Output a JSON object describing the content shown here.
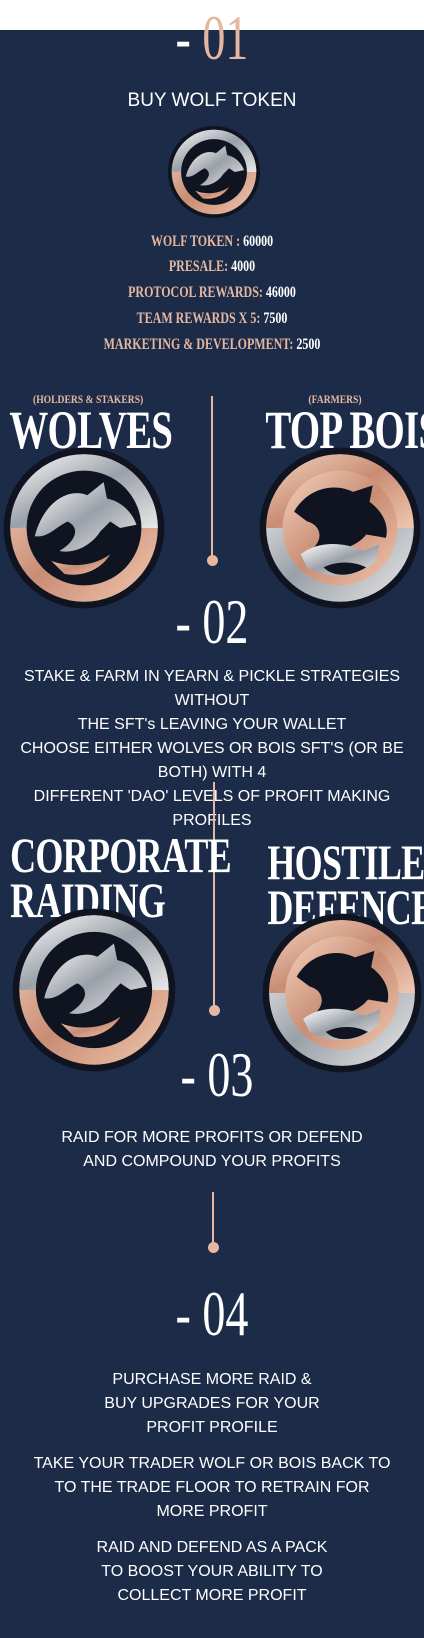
{
  "step1": {
    "num": "01",
    "dash": "-",
    "title": "BUY WOLF TOKEN"
  },
  "stats": [
    {
      "label": "WOLF TOKEN : ",
      "value": "60000"
    },
    {
      "label": "PRESALE:  ",
      "value": "4000"
    },
    {
      "label": "PROTOCOL REWARDS: ",
      "value": "46000"
    },
    {
      "label": "TEAM REWARDS X 5: ",
      "value": "7500"
    },
    {
      "label": "MARKETING & DEVELOPMENT: ",
      "value": "2500"
    }
  ],
  "factions": {
    "left": {
      "sub": "(HOLDERS & STAKERS)",
      "name": "WOLVES"
    },
    "right": {
      "sub": "(FARMERS)",
      "name": "TOP BOIS"
    }
  },
  "step2": {
    "num": "02",
    "dash": "-",
    "lines": [
      "STAKE & FARM IN YEARN & PICKLE STRATEGIES WITHOUT",
      "THE SFT's LEAVING YOUR WALLET",
      "CHOOSE EITHER WOLVES OR BOIS SFT'S (OR BE BOTH) WITH 4",
      "DIFFERENT 'DAO' LEVELS OF PROFIT MAKING PROFILES"
    ]
  },
  "modes": {
    "left": [
      "CORPORATE",
      "RAIDING"
    ],
    "right": [
      "HOSTILE",
      "DEFENCE"
    ]
  },
  "step3": {
    "num": "03",
    "dash": "-",
    "lines": [
      "RAID FOR MORE PROFITS OR DEFEND",
      "AND COMPOUND YOUR PROFITS"
    ]
  },
  "step4": {
    "num": "04",
    "dash": "-",
    "para1": [
      "PURCHASE MORE RAID &",
      "BUY  UPGRADES FOR YOUR",
      "PROFIT PROFILE"
    ],
    "para2": [
      "TAKE YOUR TRADER WOLF OR BOIS BACK TO",
      "TO THE TRADE FLOOR TO RETRAIN FOR",
      "MORE PROFIT"
    ],
    "para3": [
      "RAID AND DEFEND AS A PACK",
      "TO BOOST YOUR ABILITY TO",
      "COLLECT MORE PROFIT"
    ]
  },
  "colors": {
    "background": "#1b2b48",
    "accent": "#e6b7a0",
    "text": "#ffffff"
  },
  "icons": [
    "wolf-emblem-icon",
    "bois-emblem-icon"
  ]
}
